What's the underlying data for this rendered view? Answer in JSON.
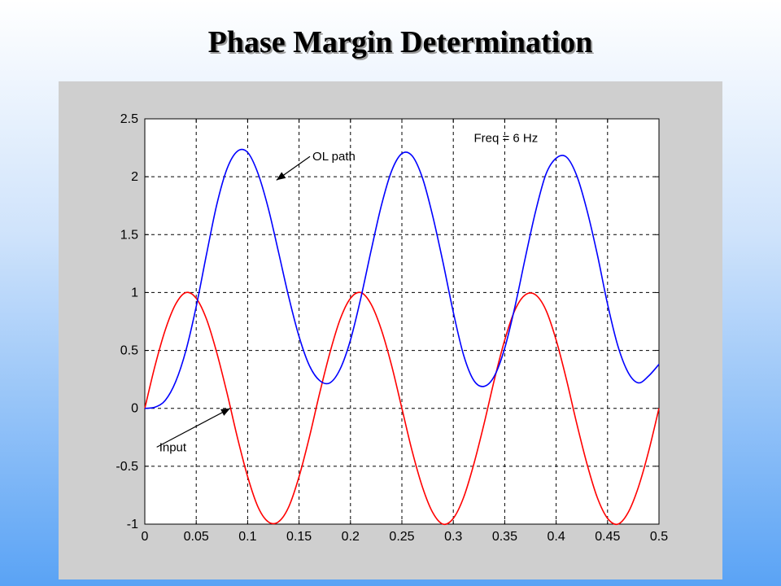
{
  "slide": {
    "title": "Phase Margin Determination"
  },
  "chart_data": {
    "type": "line",
    "title": "",
    "xlabel": "",
    "ylabel": "",
    "xlim": [
      0,
      0.5
    ],
    "ylim": [
      -1,
      2.5
    ],
    "grid": true,
    "xticks": [
      "0",
      "0.05",
      "0.1",
      "0.15",
      "0.2",
      "0.25",
      "0.3",
      "0.35",
      "0.4",
      "0.45",
      "0.5"
    ],
    "yticks": [
      "-1",
      "-0.5",
      "0",
      "0.5",
      "1",
      "1.5",
      "2",
      "2.5"
    ],
    "series": [
      {
        "name": "Input",
        "color": "#ff0000",
        "x": [
          0,
          0.01,
          0.02,
          0.03,
          0.04,
          0.05,
          0.06,
          0.07,
          0.08,
          0.09,
          0.1,
          0.11,
          0.12,
          0.13,
          0.14,
          0.15,
          0.16,
          0.17,
          0.18,
          0.19,
          0.2,
          0.21,
          0.22,
          0.23,
          0.24,
          0.25,
          0.26,
          0.27,
          0.28,
          0.29,
          0.3,
          0.31,
          0.32,
          0.33,
          0.34,
          0.35,
          0.36,
          0.37,
          0.38,
          0.39,
          0.4,
          0.41,
          0.42,
          0.43,
          0.44,
          0.45,
          0.46,
          0.47,
          0.48,
          0.49,
          0.5
        ],
        "values": [
          0,
          0.37,
          0.68,
          0.9,
          1.0,
          0.95,
          0.77,
          0.48,
          0.13,
          -0.25,
          -0.59,
          -0.85,
          -0.98,
          -0.98,
          -0.85,
          -0.59,
          -0.25,
          0.13,
          0.48,
          0.77,
          0.95,
          1.0,
          0.9,
          0.68,
          0.37,
          0,
          -0.37,
          -0.68,
          -0.9,
          -1.0,
          -0.95,
          -0.77,
          -0.48,
          -0.13,
          0.25,
          0.59,
          0.85,
          0.98,
          0.98,
          0.85,
          0.59,
          0.25,
          -0.13,
          -0.48,
          -0.77,
          -0.95,
          -1.0,
          -0.9,
          -0.68,
          -0.37,
          0
        ]
      },
      {
        "name": "OL path",
        "color": "#0000ff",
        "x": [
          0,
          0.01,
          0.02,
          0.03,
          0.04,
          0.05,
          0.06,
          0.07,
          0.08,
          0.09,
          0.1,
          0.11,
          0.12,
          0.13,
          0.14,
          0.15,
          0.16,
          0.17,
          0.18,
          0.19,
          0.2,
          0.21,
          0.22,
          0.23,
          0.24,
          0.25,
          0.26,
          0.27,
          0.28,
          0.29,
          0.3,
          0.31,
          0.32,
          0.33,
          0.34,
          0.35,
          0.36,
          0.37,
          0.38,
          0.39,
          0.4,
          0.41,
          0.42,
          0.43,
          0.44,
          0.45,
          0.46,
          0.47,
          0.48,
          0.49,
          0.5
        ],
        "values": [
          0,
          0.01,
          0.07,
          0.23,
          0.5,
          0.88,
          1.33,
          1.76,
          2.07,
          2.22,
          2.21,
          2.03,
          1.73,
          1.35,
          0.96,
          0.62,
          0.37,
          0.24,
          0.22,
          0.34,
          0.59,
          0.95,
          1.36,
          1.75,
          2.05,
          2.2,
          2.18,
          1.99,
          1.66,
          1.26,
          0.83,
          0.46,
          0.24,
          0.19,
          0.28,
          0.52,
          0.88,
          1.3,
          1.7,
          2.02,
          2.16,
          2.17,
          2.01,
          1.71,
          1.33,
          0.9,
          0.54,
          0.31,
          0.22,
          0.28,
          0.38
        ]
      }
    ],
    "annotations": [
      {
        "text": "Freq = 6 Hz",
        "x": 0.32,
        "y": 2.3
      },
      {
        "text": "OL path",
        "x": 0.163,
        "y": 2.14,
        "arrow_to": [
          0.128,
          1.97
        ]
      },
      {
        "text": "Input",
        "x": 0.014,
        "y": -0.37,
        "arrow_to": [
          0.083,
          0.0
        ]
      }
    ]
  }
}
